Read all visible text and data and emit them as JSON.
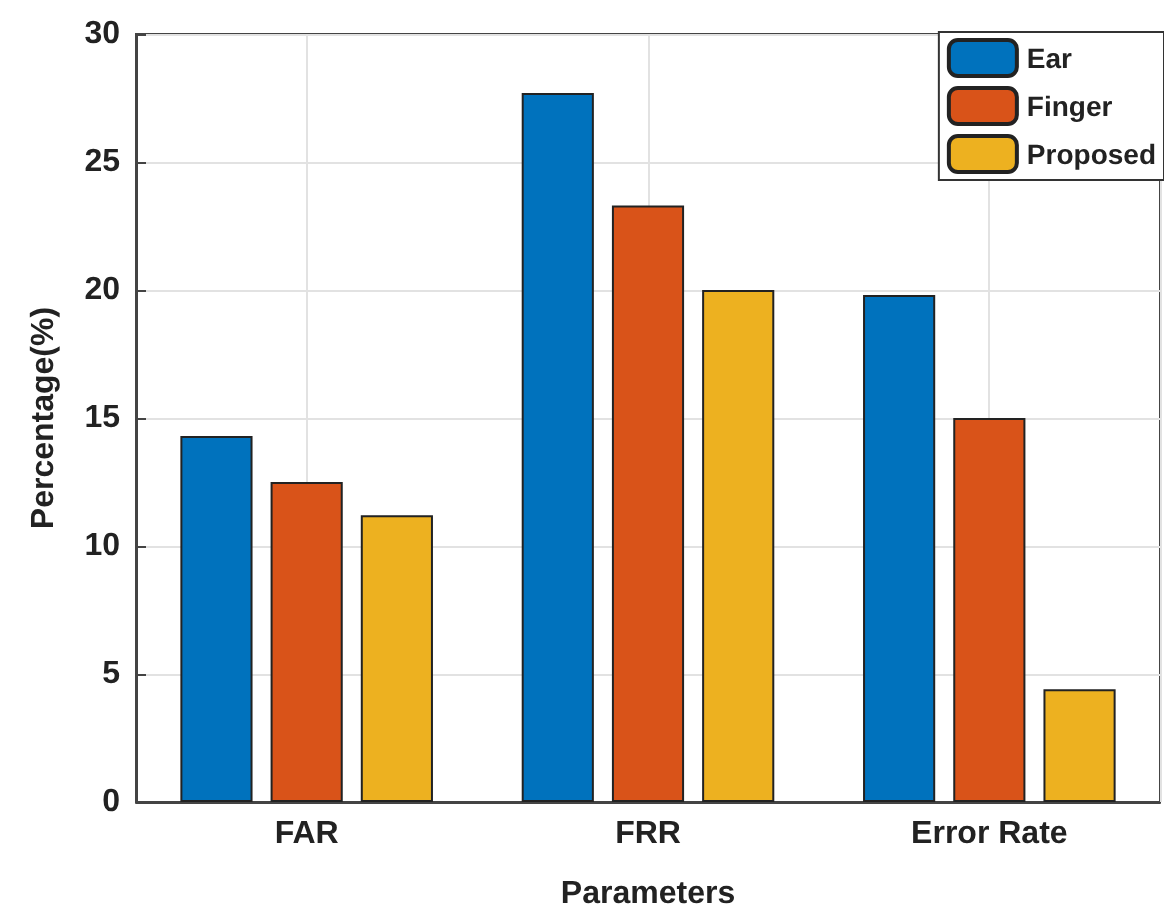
{
  "chart_data": {
    "type": "bar",
    "xlabel": "Parameters",
    "ylabel": "Percentage(%)",
    "categories": [
      "FAR",
      "FRR",
      "Error Rate"
    ],
    "series": [
      {
        "name": "Ear",
        "color": "#0072bd",
        "values": [
          14.3,
          27.7,
          19.8
        ]
      },
      {
        "name": "Finger",
        "color": "#d95319",
        "values": [
          12.5,
          23.3,
          15.0
        ]
      },
      {
        "name": "Proposed",
        "color": "#edb120",
        "values": [
          11.2,
          20.0,
          4.4
        ]
      }
    ],
    "ylim": [
      0,
      30
    ],
    "yticks": [
      0,
      5,
      10,
      15,
      20,
      25,
      30
    ],
    "grid": true,
    "legend": "top right"
  }
}
